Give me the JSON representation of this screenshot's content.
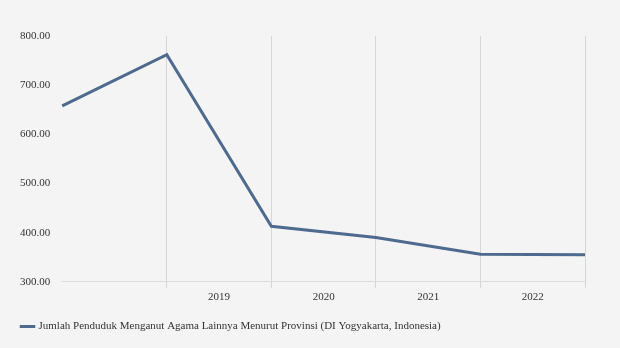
{
  "chart_data": {
    "type": "line",
    "categories": [
      null,
      "2019",
      "2020",
      "2021",
      "2022",
      null
    ],
    "series": [
      {
        "name": "Jumlah Penduduk Menganut Agama Lainnya Menurut Provinsi (DI Yogyakarta, Indonesia)",
        "color": "#4f6a8f",
        "values": [
          658,
          762,
          413,
          390,
          356,
          355
        ]
      }
    ],
    "ylim": [
      300,
      800
    ],
    "yticks": [
      {
        "value": 300,
        "label": "300.00"
      },
      {
        "value": 400,
        "label": "400.00"
      },
      {
        "value": 500,
        "label": "500.00"
      },
      {
        "value": 600,
        "label": "600.00"
      },
      {
        "value": 700,
        "label": "700.00"
      },
      {
        "value": 800,
        "label": "800.00"
      }
    ],
    "grid": true,
    "legend": "bottom"
  }
}
